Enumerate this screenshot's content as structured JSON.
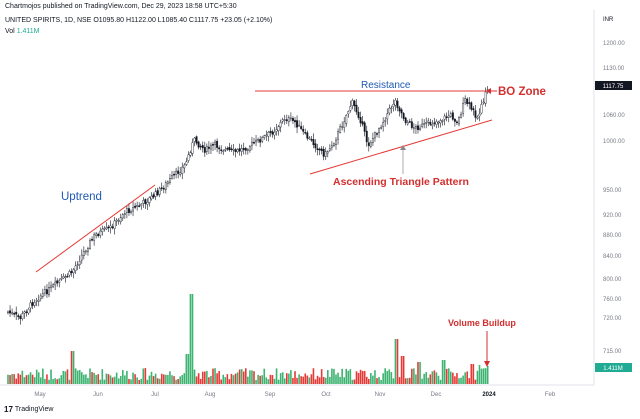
{
  "header": {
    "publisher": "Chartmojos published on TradingView.com, Dec 29, 2023 18:58 UTC+5:30",
    "symbol": "UNITED SPIRITS, 1D, NSE",
    "ohlc": "O1095.80 H1122.00 L1085.40 C1117.75 +23.05 (+2.10%)",
    "volume_label": "Vol",
    "volume_value": "1.411M"
  },
  "footer": {
    "logo_mark": "17",
    "logo_text": "TradingView"
  },
  "colors": {
    "up": "#26a69a",
    "down": "#ef5350",
    "candle": "#131722",
    "annotation_red": "#d32f2f",
    "annotation_blue": "#1e5ab4",
    "price_tag_bg": "#131722",
    "volume_tag_bg": "#22ab94"
  },
  "chart_data": {
    "type": "candlestick",
    "currency_label": "INR",
    "y_ticks": [
      "1200.00",
      "1130.00",
      "1117.75",
      "1060.00",
      "1000.00",
      "950.00",
      "920.00",
      "880.00",
      "840.00",
      "800.00",
      "760.00",
      "720.00",
      "715.00",
      "1.411M"
    ],
    "x_ticks": [
      "May",
      "Jun",
      "Jul",
      "Aug",
      "Sep",
      "Oct",
      "Nov",
      "Dec",
      "2024",
      "Feb"
    ],
    "last_price": 1117.75,
    "last_volume": "1.411M",
    "annotations": [
      {
        "text": "Uptrend",
        "color": "blue"
      },
      {
        "text": "Resistance",
        "color": "blue"
      },
      {
        "text": "BO Zone",
        "color": "red"
      },
      {
        "text": "Ascending Triangle Pattern",
        "color": "red"
      },
      {
        "text": "Volume Buildup",
        "color": "red"
      }
    ]
  }
}
